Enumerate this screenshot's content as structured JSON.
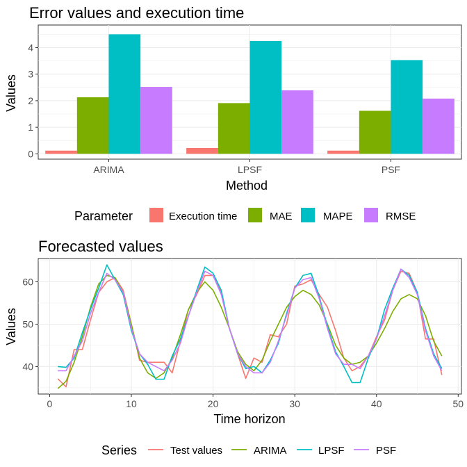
{
  "chart_data": [
    {
      "type": "bar",
      "title": "Error values and execution time",
      "xlabel": "Method",
      "ylabel": "Values",
      "categories": [
        "ARIMA",
        "LPSF",
        "PSF"
      ],
      "ylim": [
        -0.2,
        4.85
      ],
      "yticks": [
        0,
        1,
        2,
        3,
        4
      ],
      "grid": true,
      "legend_position": "bottom",
      "legend_title": "Parameter",
      "series": [
        {
          "name": "Execution time",
          "color": "#F8766D",
          "values": [
            0.12,
            0.22,
            0.12
          ]
        },
        {
          "name": "MAE",
          "color": "#7CAE00",
          "values": [
            2.13,
            1.91,
            1.62
          ]
        },
        {
          "name": "MAPE",
          "color": "#00BFC4",
          "values": [
            4.5,
            4.25,
            3.53
          ]
        },
        {
          "name": "RMSE",
          "color": "#C77CFF",
          "values": [
            2.52,
            2.39,
            2.08
          ]
        }
      ]
    },
    {
      "type": "line",
      "title": "Forecasted values",
      "xlabel": "Time horizon",
      "ylabel": "Values",
      "xlim": [
        -1.4,
        50.4
      ],
      "ylim": [
        33.5,
        65.5
      ],
      "xticks": [
        0,
        10,
        20,
        30,
        40,
        50
      ],
      "yticks": [
        40,
        50,
        60
      ],
      "grid": true,
      "legend_position": "bottom",
      "legend_title": "Series",
      "x": [
        1,
        2,
        3,
        4,
        5,
        6,
        7,
        8,
        9,
        10,
        11,
        12,
        13,
        14,
        15,
        16,
        17,
        18,
        19,
        20,
        21,
        22,
        23,
        24,
        25,
        26,
        27,
        28,
        29,
        30,
        31,
        32,
        33,
        34,
        35,
        36,
        37,
        38,
        39,
        40,
        41,
        42,
        43,
        44,
        45,
        46,
        47,
        48
      ],
      "series": [
        {
          "name": "Test values",
          "color": "#F8766D",
          "values": [
            37.1,
            35.2,
            44.0,
            44.0,
            51.0,
            57.5,
            60.0,
            61.0,
            58.0,
            50.0,
            41.5,
            41.0,
            41.0,
            41.0,
            38.5,
            46.0,
            53.5,
            57.0,
            61.5,
            61.5,
            57.5,
            49.0,
            43.0,
            37.2,
            42.0,
            41.0,
            47.5,
            47.0,
            50.0,
            59.0,
            59.5,
            60.5,
            57.0,
            54.0,
            48.5,
            42.0,
            39.0,
            40.0,
            42.5,
            47.0,
            51.0,
            58.0,
            62.5,
            62.0,
            57.5,
            46.5,
            46.5,
            38.0
          ]
        },
        {
          "name": "ARIMA",
          "color": "#7CAE00",
          "values": [
            34.8,
            36.5,
            41.0,
            47.0,
            54.0,
            59.5,
            61.5,
            61.0,
            57.5,
            50.0,
            42.0,
            38.5,
            37.2,
            38.5,
            42.0,
            47.5,
            53.5,
            57.5,
            60.0,
            58.0,
            54.0,
            49.0,
            43.5,
            40.5,
            39.0,
            41.5,
            46.0,
            50.0,
            54.0,
            56.5,
            58.0,
            57.0,
            54.5,
            50.0,
            45.0,
            42.0,
            40.5,
            41.0,
            42.5,
            45.5,
            49.0,
            53.0,
            56.0,
            57.0,
            56.0,
            52.0,
            46.0,
            42.5
          ]
        },
        {
          "name": "LPSF",
          "color": "#00BFC4",
          "values": [
            40.0,
            39.8,
            42.0,
            48.0,
            53.5,
            58.5,
            64.0,
            60.5,
            57.0,
            48.5,
            43.0,
            40.5,
            37.0,
            37.0,
            42.5,
            46.5,
            52.0,
            58.0,
            63.5,
            62.0,
            58.0,
            49.0,
            43.0,
            39.5,
            40.0,
            38.5,
            41.5,
            45.5,
            52.5,
            58.5,
            61.5,
            62.0,
            56.5,
            49.5,
            43.5,
            40.0,
            36.2,
            36.2,
            42.0,
            46.5,
            53.5,
            58.5,
            63.0,
            61.5,
            57.5,
            49.0,
            43.0,
            39.5
          ]
        },
        {
          "name": "PSF",
          "color": "#C77CFF",
          "values": [
            39.0,
            39.0,
            42.5,
            46.0,
            52.5,
            57.5,
            62.0,
            60.5,
            57.5,
            49.0,
            43.0,
            41.0,
            40.0,
            39.0,
            41.5,
            45.5,
            52.0,
            57.5,
            62.5,
            61.5,
            57.0,
            49.0,
            43.0,
            40.0,
            38.5,
            38.5,
            41.0,
            46.0,
            52.0,
            58.5,
            60.5,
            61.0,
            56.0,
            49.0,
            43.0,
            40.5,
            40.5,
            39.5,
            42.5,
            46.5,
            52.0,
            58.0,
            63.0,
            61.0,
            57.0,
            48.5,
            42.5,
            39.0
          ]
        }
      ]
    }
  ]
}
